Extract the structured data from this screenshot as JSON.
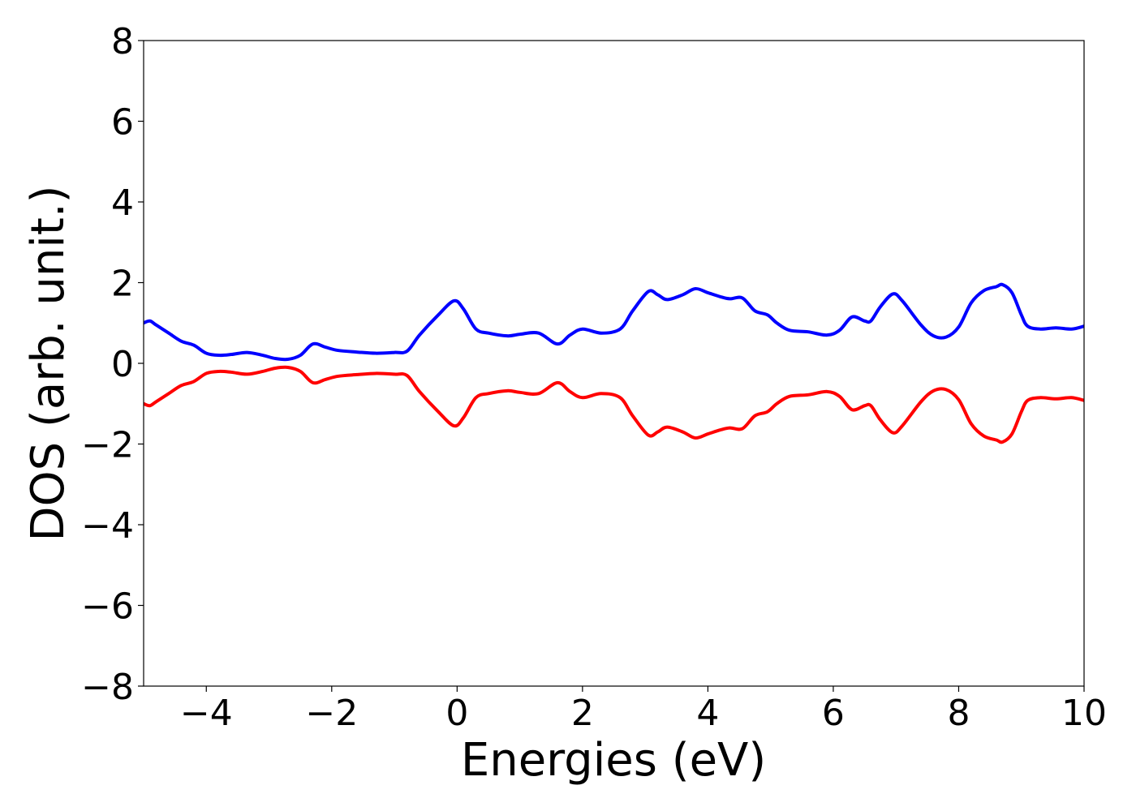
{
  "chart_data": {
    "type": "line",
    "title": "",
    "xlabel": "Energies (eV)",
    "ylabel": "DOS (arb. unit.)",
    "xlim": [
      -5,
      10
    ],
    "ylim": [
      -8,
      8
    ],
    "xticks": [
      -4,
      -2,
      0,
      2,
      4,
      6,
      8,
      10
    ],
    "yticks": [
      -8,
      -6,
      -4,
      -2,
      0,
      2,
      4,
      6,
      8
    ],
    "xtick_labels": [
      "−4",
      "−2",
      "0",
      "2",
      "4",
      "6",
      "8",
      "10"
    ],
    "ytick_labels": [
      "−8",
      "−6",
      "−4",
      "−2",
      "0",
      "2",
      "4",
      "6",
      "8"
    ],
    "grid": false,
    "legend": "none",
    "series": [
      {
        "color": "#0000ff",
        "x": [
          -5.0,
          -4.9,
          -4.8,
          -4.6,
          -4.4,
          -4.2,
          -4.0,
          -3.8,
          -3.6,
          -3.35,
          -3.1,
          -2.9,
          -2.7,
          -2.5,
          -2.3,
          -2.1,
          -1.9,
          -1.6,
          -1.3,
          -1.0,
          -0.8,
          -0.6,
          -0.3,
          -0.05,
          0.1,
          0.3,
          0.5,
          0.8,
          1.0,
          1.3,
          1.6,
          1.8,
          2.0,
          2.3,
          2.6,
          2.8,
          3.05,
          3.2,
          3.35,
          3.6,
          3.8,
          4.0,
          4.2,
          4.35,
          4.55,
          4.75,
          4.95,
          5.1,
          5.3,
          5.6,
          5.9,
          6.1,
          6.3,
          6.5,
          6.6,
          6.75,
          6.95,
          7.1,
          7.4,
          7.6,
          7.8,
          8.0,
          8.2,
          8.4,
          8.6,
          8.7,
          8.85,
          9.0,
          9.1,
          9.3,
          9.55,
          9.8,
          10.0
        ],
        "y": [
          1.0,
          1.05,
          0.95,
          0.75,
          0.55,
          0.45,
          0.25,
          0.2,
          0.22,
          0.27,
          0.2,
          0.12,
          0.1,
          0.2,
          0.48,
          0.4,
          0.32,
          0.28,
          0.25,
          0.27,
          0.3,
          0.7,
          1.2,
          1.55,
          1.35,
          0.85,
          0.75,
          0.68,
          0.72,
          0.75,
          0.48,
          0.7,
          0.85,
          0.75,
          0.85,
          1.3,
          1.78,
          1.7,
          1.58,
          1.7,
          1.85,
          1.75,
          1.65,
          1.6,
          1.62,
          1.3,
          1.2,
          1.0,
          0.82,
          0.78,
          0.7,
          0.82,
          1.15,
          1.05,
          1.05,
          1.4,
          1.72,
          1.55,
          0.95,
          0.68,
          0.65,
          0.9,
          1.5,
          1.8,
          1.9,
          1.95,
          1.75,
          1.2,
          0.92,
          0.85,
          0.88,
          0.85,
          0.92
        ]
      },
      {
        "color": "#ff0000",
        "x": [
          -5.0,
          -4.9,
          -4.8,
          -4.6,
          -4.4,
          -4.2,
          -4.0,
          -3.8,
          -3.6,
          -3.35,
          -3.1,
          -2.9,
          -2.7,
          -2.5,
          -2.3,
          -2.1,
          -1.9,
          -1.6,
          -1.3,
          -1.0,
          -0.8,
          -0.6,
          -0.3,
          -0.05,
          0.1,
          0.3,
          0.5,
          0.8,
          1.0,
          1.3,
          1.6,
          1.8,
          2.0,
          2.3,
          2.6,
          2.8,
          3.05,
          3.2,
          3.35,
          3.6,
          3.8,
          4.0,
          4.2,
          4.35,
          4.55,
          4.75,
          4.95,
          5.1,
          5.3,
          5.6,
          5.9,
          6.1,
          6.3,
          6.5,
          6.6,
          6.75,
          6.95,
          7.1,
          7.4,
          7.6,
          7.8,
          8.0,
          8.2,
          8.4,
          8.6,
          8.7,
          8.85,
          9.0,
          9.1,
          9.3,
          9.55,
          9.8,
          10.0
        ],
        "y": [
          -1.0,
          -1.05,
          -0.95,
          -0.75,
          -0.55,
          -0.45,
          -0.25,
          -0.2,
          -0.22,
          -0.27,
          -0.2,
          -0.12,
          -0.1,
          -0.2,
          -0.48,
          -0.4,
          -0.32,
          -0.28,
          -0.25,
          -0.27,
          -0.3,
          -0.7,
          -1.2,
          -1.55,
          -1.35,
          -0.85,
          -0.75,
          -0.68,
          -0.72,
          -0.75,
          -0.48,
          -0.7,
          -0.85,
          -0.75,
          -0.85,
          -1.3,
          -1.78,
          -1.7,
          -1.58,
          -1.7,
          -1.85,
          -1.75,
          -1.65,
          -1.6,
          -1.62,
          -1.3,
          -1.2,
          -1.0,
          -0.82,
          -0.78,
          -0.7,
          -0.82,
          -1.15,
          -1.05,
          -1.05,
          -1.4,
          -1.72,
          -1.55,
          -0.95,
          -0.68,
          -0.65,
          -0.9,
          -1.5,
          -1.8,
          -1.9,
          -1.95,
          -1.75,
          -1.2,
          -0.92,
          -0.85,
          -0.88,
          -0.85,
          -0.92
        ]
      }
    ]
  }
}
